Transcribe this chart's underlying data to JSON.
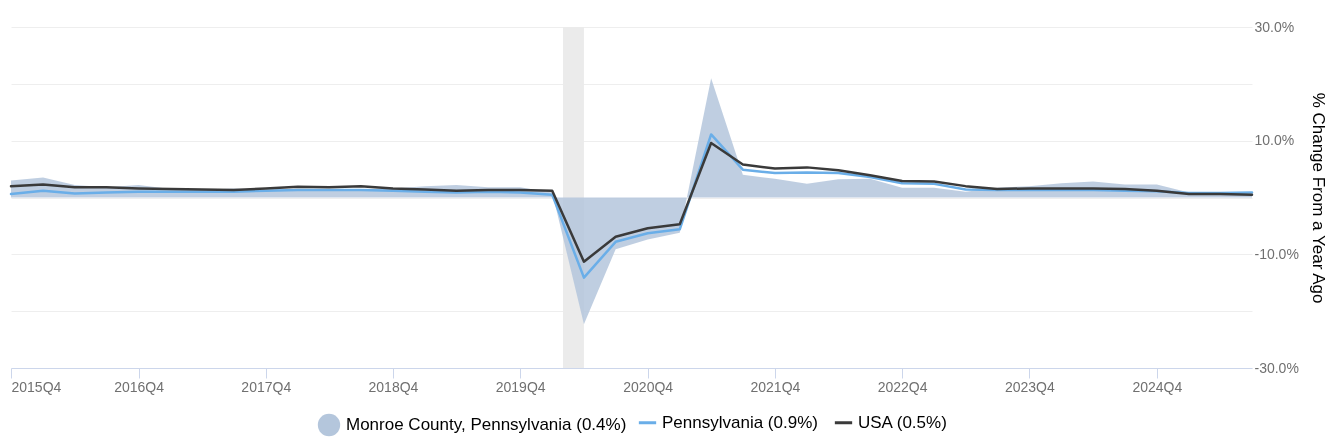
{
  "chart_data": {
    "type": "line",
    "ylabel": "% Change From a Year Ago",
    "x": [
      "2015-10-01",
      "2016-01-01",
      "2016-04-01",
      "2016-07-01",
      "2016-10-01",
      "2017-01-01",
      "2017-04-01",
      "2017-07-01",
      "2017-10-01",
      "2018-01-01",
      "2018-04-01",
      "2018-07-01",
      "2018-10-01",
      "2019-01-01",
      "2019-04-01",
      "2019-07-01",
      "2019-10-01",
      "2020-01-01",
      "2020-04-01",
      "2020-07-01",
      "2020-10-01",
      "2021-01-01",
      "2021-04-01",
      "2021-07-01",
      "2021-10-01",
      "2022-01-01",
      "2022-04-01",
      "2022-07-01",
      "2022-10-01",
      "2023-01-01",
      "2023-04-01",
      "2023-07-01",
      "2023-10-01",
      "2024-01-01",
      "2024-04-01",
      "2024-07-01",
      "2024-10-01",
      "2025-01-01",
      "2025-04-01",
      "2025-07-01"
    ],
    "series": [
      {
        "name": "Monroe County, Pennsylvania (0.4%)",
        "type": "area",
        "color": "#b4c6dc",
        "values": [
          3.0,
          3.5,
          2.2,
          1.8,
          2.2,
          1.5,
          1.3,
          1.6,
          1.3,
          1.5,
          1.5,
          1.5,
          1.6,
          2.0,
          2.2,
          1.8,
          1.8,
          0.9,
          -22.3,
          -9.1,
          -7.4,
          -6.2,
          21.0,
          4.0,
          3.3,
          2.4,
          3.2,
          3.3,
          1.7,
          1.7,
          1.0,
          1.7,
          2.0,
          2.5,
          2.8,
          2.3,
          2.3,
          0.9,
          0.8,
          0.4
        ]
      },
      {
        "name": "Pennsylvania (0.9%)",
        "type": "line",
        "color": "#6aaee8",
        "values": [
          0.6,
          1.2,
          0.7,
          0.9,
          1.0,
          1.0,
          1.0,
          1.0,
          1.2,
          1.3,
          1.3,
          1.3,
          1.2,
          1.0,
          0.9,
          1.0,
          0.9,
          0.5,
          -14.1,
          -7.8,
          -6.3,
          -5.6,
          11.1,
          4.9,
          4.3,
          4.4,
          4.3,
          3.6,
          2.5,
          2.4,
          1.4,
          1.3,
          1.3,
          1.3,
          1.3,
          1.2,
          1.1,
          0.8,
          0.8,
          0.9
        ]
      },
      {
        "name": "USA (0.5%)",
        "type": "line",
        "color": "#3a3a3a",
        "values": [
          2.0,
          2.3,
          1.8,
          1.8,
          1.6,
          1.5,
          1.4,
          1.3,
          1.6,
          1.9,
          1.8,
          2.0,
          1.6,
          1.4,
          1.2,
          1.3,
          1.3,
          1.2,
          -11.3,
          -6.9,
          -5.4,
          -4.7,
          9.6,
          5.8,
          5.1,
          5.3,
          4.8,
          3.9,
          2.9,
          2.8,
          2.0,
          1.5,
          1.6,
          1.6,
          1.6,
          1.5,
          1.2,
          0.6,
          0.6,
          0.5
        ]
      }
    ],
    "xlim": [
      "2015-10-01",
      "2025-07-01"
    ],
    "xticks": [
      {
        "value": "2015-10-01",
        "label": "2015Q4"
      },
      {
        "value": "2016-10-01",
        "label": "2016Q4"
      },
      {
        "value": "2017-10-01",
        "label": "2017Q4"
      },
      {
        "value": "2018-10-01",
        "label": "2018Q4"
      },
      {
        "value": "2019-10-01",
        "label": "2019Q4"
      },
      {
        "value": "2020-10-01",
        "label": "2020Q4"
      },
      {
        "value": "2021-10-01",
        "label": "2021Q4"
      },
      {
        "value": "2022-10-01",
        "label": "2022Q4"
      },
      {
        "value": "2023-10-01",
        "label": "2023Q4"
      },
      {
        "value": "2024-10-01",
        "label": "2024Q4"
      }
    ],
    "ylim": [
      -30,
      30
    ],
    "yticks": [
      {
        "value": -30,
        "label": "-30.0%"
      },
      {
        "value": -20,
        "label": null
      },
      {
        "value": -10,
        "label": "-10.0%"
      },
      {
        "value": 0,
        "label": null
      },
      {
        "value": 10,
        "label": "10.0%"
      },
      {
        "value": 20,
        "label": null
      },
      {
        "value": 30,
        "label": "30.0%"
      }
    ],
    "bands": [
      {
        "axis": "x",
        "from": "2020-02-01",
        "to": "2020-04-01",
        "color": "#ebebeb"
      }
    ],
    "grid": "y",
    "legend": "bottom"
  }
}
